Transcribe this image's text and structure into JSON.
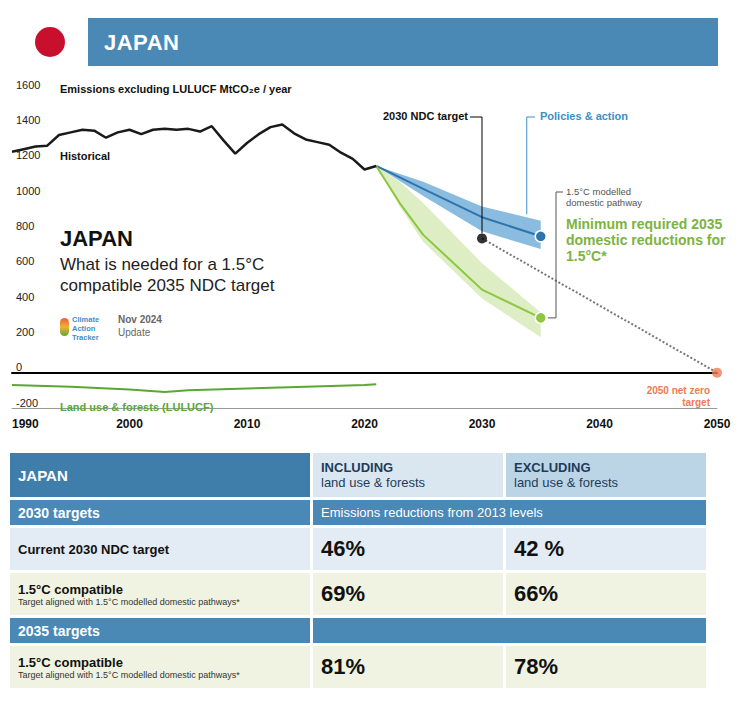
{
  "header": {
    "title": "JAPAN"
  },
  "chart_data": {
    "type": "line",
    "title": "JAPAN",
    "subtitle": "What is needed for a 1.5°C compatible 2035 NDC target",
    "y_label": "Emissions excluding LULUCF MtCO₂e / year",
    "source": {
      "logo": "Climate Action Tracker",
      "date": "Nov 2024",
      "note": "Update"
    },
    "xlim": [
      1990,
      2050
    ],
    "xticks": [
      1990,
      2000,
      2010,
      2020,
      2030,
      2040,
      2050
    ],
    "ylim": [
      -200,
      1600
    ],
    "yticks": [
      -200,
      0,
      200,
      400,
      600,
      800,
      1000,
      1200,
      1400,
      1600
    ],
    "grid": false,
    "series": [
      {
        "name": "Historical",
        "type": "line",
        "color": "#1a1a1a",
        "x": [
          1990,
          1991,
          1992,
          1993,
          1994,
          1995,
          1996,
          1997,
          1998,
          1999,
          2000,
          2001,
          2002,
          2003,
          2004,
          2005,
          2006,
          2007,
          2008,
          2009,
          2010,
          2011,
          2012,
          2013,
          2014,
          2015,
          2016,
          2017,
          2018,
          2019,
          2020,
          2021
        ],
        "values": [
          1250,
          1265,
          1280,
          1285,
          1345,
          1360,
          1375,
          1370,
          1330,
          1360,
          1375,
          1350,
          1375,
          1380,
          1375,
          1380,
          1365,
          1395,
          1315,
          1240,
          1300,
          1350,
          1390,
          1405,
          1355,
          1320,
          1305,
          1290,
          1245,
          1210,
          1150,
          1170
        ]
      },
      {
        "name": "Land use & forests (LULUCF)",
        "type": "line",
        "color": "#5aa832",
        "x": [
          1990,
          1995,
          2000,
          2003,
          2005,
          2010,
          2015,
          2020,
          2021
        ],
        "values": [
          -70,
          -80,
          -95,
          -110,
          -100,
          -90,
          -80,
          -70,
          -65
        ]
      },
      {
        "name": "Policies & action",
        "type": "band",
        "color": "#3a8fc8",
        "marker": "circle",
        "x": [
          2021,
          2025,
          2030,
          2035
        ],
        "values": [
          1170,
          1040,
          880,
          772
        ],
        "lower": [
          1170,
          1000,
          800,
          700
        ],
        "upper": [
          1170,
          1080,
          940,
          860
        ]
      },
      {
        "name": "1.5°C modelled domestic pathway",
        "type": "band",
        "color": "#8dc63f",
        "marker": "circle",
        "x": [
          2021,
          2023,
          2025,
          2030,
          2035
        ],
        "values": [
          1170,
          960,
          780,
          470,
          310
        ],
        "lower": [
          1170,
          940,
          740,
          420,
          200
        ],
        "upper": [
          1170,
          1080,
          960,
          620,
          340
        ]
      },
      {
        "name": "2030 NDC target",
        "type": "scatter",
        "color": "#000000",
        "marker": "circle",
        "x": [
          2030
        ],
        "values": [
          760
        ]
      },
      {
        "type": "line",
        "line_style": "dotted",
        "color": "#777777",
        "x": [
          2030,
          2050
        ],
        "values": [
          760,
          0
        ]
      },
      {
        "name": "2050 net zero target",
        "type": "scatter",
        "color": "#ee7a55",
        "marker": "circle",
        "x": [
          2050
        ],
        "values": [
          0
        ]
      }
    ],
    "annotations": [
      "Minimum required 2035 domestic reductions for 1.5°C*"
    ]
  },
  "table": {
    "header": [
      "JAPAN",
      {
        "title": "INCLUDING",
        "subtitle": "land use & forests"
      },
      {
        "title": "EXCLUDING",
        "subtitle": "land use & forests"
      }
    ],
    "sections": [
      {
        "title": "2030 targets",
        "note": "Emissions reductions from 2013 levels",
        "rows": [
          {
            "label": "Current 2030 NDC target",
            "values": [
              "46%",
              "42 %"
            ]
          },
          {
            "label": "1.5°C compatible",
            "sublabel": "Target aligned with 1.5°C modelled domestic pathways*",
            "values": [
              "69%",
              "66%"
            ]
          }
        ]
      },
      {
        "title": "2035 targets",
        "rows": [
          {
            "label": "1.5°C compatible",
            "sublabel": "Target aligned with 1.5°C modelled domestic pathways*",
            "values": [
              "81%",
              "78%"
            ]
          }
        ]
      }
    ]
  }
}
